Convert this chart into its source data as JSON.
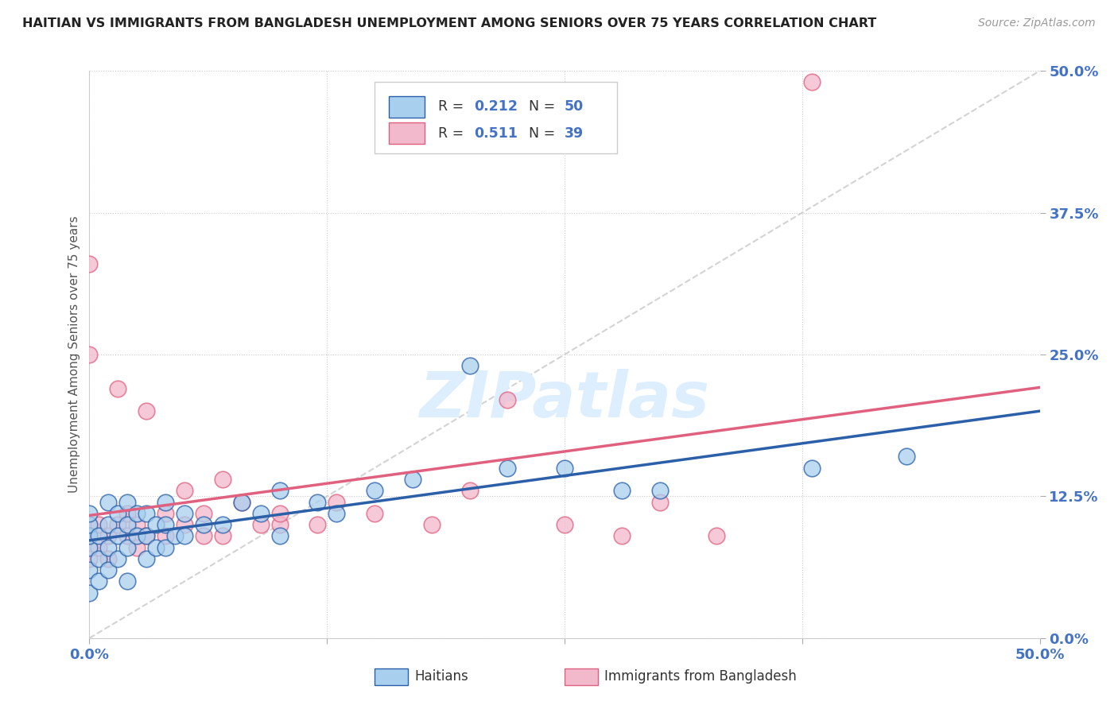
{
  "title": "HAITIAN VS IMMIGRANTS FROM BANGLADESH UNEMPLOYMENT AMONG SENIORS OVER 75 YEARS CORRELATION CHART",
  "source": "Source: ZipAtlas.com",
  "ylabel": "Unemployment Among Seniors over 75 years",
  "ytick_values": [
    0.0,
    0.125,
    0.25,
    0.375,
    0.5
  ],
  "ytick_labels": [
    "0.0%",
    "12.5%",
    "25.0%",
    "37.5%",
    "50.0%"
  ],
  "xtick_values": [
    0.0,
    0.125,
    0.25,
    0.375,
    0.5
  ],
  "xtick_labels": [
    "0.0%",
    "",
    "",
    "",
    "50.0%"
  ],
  "xlim": [
    0.0,
    0.5
  ],
  "ylim": [
    0.0,
    0.5
  ],
  "color_blue": "#A8CFEE",
  "color_pink": "#F2B8CC",
  "color_blue_line": "#2B5FA8",
  "color_pink_line": "#E06080",
  "color_diagonal": "#C8C8C8",
  "watermark": "ZIPatlas",
  "haitians_x": [
    0.0,
    0.0,
    0.0,
    0.0,
    0.0,
    0.0,
    0.005,
    0.005,
    0.005,
    0.01,
    0.01,
    0.01,
    0.01,
    0.015,
    0.015,
    0.015,
    0.02,
    0.02,
    0.02,
    0.02,
    0.025,
    0.025,
    0.03,
    0.03,
    0.03,
    0.035,
    0.035,
    0.04,
    0.04,
    0.04,
    0.045,
    0.05,
    0.05,
    0.06,
    0.07,
    0.08,
    0.09,
    0.1,
    0.1,
    0.12,
    0.13,
    0.15,
    0.17,
    0.2,
    0.22,
    0.25,
    0.28,
    0.3,
    0.38,
    0.43
  ],
  "haitians_y": [
    0.04,
    0.06,
    0.08,
    0.09,
    0.1,
    0.11,
    0.05,
    0.07,
    0.09,
    0.06,
    0.08,
    0.1,
    0.12,
    0.07,
    0.09,
    0.11,
    0.05,
    0.08,
    0.1,
    0.12,
    0.09,
    0.11,
    0.07,
    0.09,
    0.11,
    0.08,
    0.1,
    0.08,
    0.1,
    0.12,
    0.09,
    0.09,
    0.11,
    0.1,
    0.1,
    0.12,
    0.11,
    0.13,
    0.09,
    0.12,
    0.11,
    0.13,
    0.14,
    0.24,
    0.15,
    0.15,
    0.13,
    0.13,
    0.15,
    0.16
  ],
  "bangladesh_x": [
    0.0,
    0.0,
    0.0,
    0.0,
    0.005,
    0.005,
    0.01,
    0.01,
    0.015,
    0.015,
    0.02,
    0.02,
    0.025,
    0.025,
    0.03,
    0.03,
    0.04,
    0.04,
    0.05,
    0.05,
    0.06,
    0.06,
    0.07,
    0.07,
    0.08,
    0.09,
    0.1,
    0.1,
    0.12,
    0.13,
    0.15,
    0.18,
    0.2,
    0.22,
    0.25,
    0.28,
    0.3,
    0.33,
    0.38
  ],
  "bangladesh_y": [
    0.07,
    0.09,
    0.25,
    0.33,
    0.08,
    0.1,
    0.07,
    0.09,
    0.22,
    0.1,
    0.09,
    0.11,
    0.08,
    0.1,
    0.2,
    0.09,
    0.09,
    0.11,
    0.1,
    0.13,
    0.09,
    0.11,
    0.14,
    0.09,
    0.12,
    0.1,
    0.1,
    0.11,
    0.1,
    0.12,
    0.11,
    0.1,
    0.13,
    0.21,
    0.1,
    0.09,
    0.12,
    0.09,
    0.49
  ]
}
